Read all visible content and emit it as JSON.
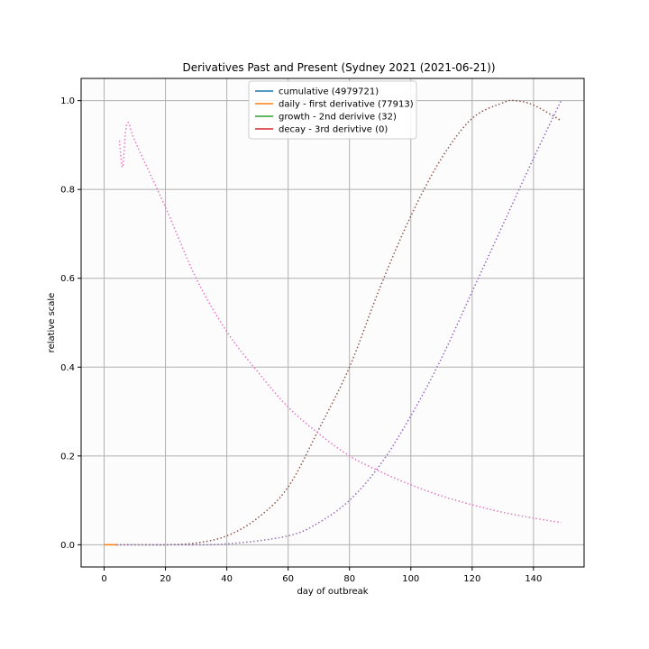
{
  "chart_data": {
    "type": "line",
    "title": "Derivatives Past and Present (Sydney 2021 (2021-06-21))",
    "xlabel": "day of outbreak",
    "ylabel": "relative scale",
    "xlim": [
      -7.5,
      156.5
    ],
    "ylim": [
      -0.05,
      1.05
    ],
    "xticks": [
      0,
      20,
      40,
      60,
      80,
      100,
      120,
      140
    ],
    "yticks": [
      0.0,
      0.2,
      0.4,
      0.6,
      0.8,
      1.0
    ],
    "xtick_labels": [
      "0",
      "20",
      "40",
      "60",
      "80",
      "100",
      "120",
      "140"
    ],
    "ytick_labels": [
      "0.0",
      "0.2",
      "0.4",
      "0.6",
      "0.8",
      "1.0"
    ],
    "grid": true,
    "legend_position": "upper center",
    "legend": [
      {
        "label": "cumulative (4979721)",
        "color": "#1f77b4"
      },
      {
        "label": "daily - first derivative (77913)",
        "color": "#ff7f0e"
      },
      {
        "label": "growth - 2nd derivive (32)",
        "color": "#2ca02c"
      },
      {
        "label": "decay - 3rd derivtive (0)",
        "color": "#d62728"
      }
    ],
    "series": [
      {
        "style": "solid",
        "color": "#ff7f0e",
        "x": [
          0,
          1,
          2,
          3,
          4
        ],
        "y": [
          0.0,
          0.0,
          0.0,
          0.0,
          0.0
        ]
      },
      {
        "style": "dotted",
        "color": "#8c564b",
        "x": [
          4,
          10,
          20,
          30,
          40,
          50,
          60,
          70,
          80,
          90,
          100,
          110,
          120,
          130,
          134,
          140,
          149
        ],
        "y": [
          0.0,
          0.0,
          0.0,
          0.004,
          0.02,
          0.06,
          0.13,
          0.26,
          0.4,
          0.58,
          0.74,
          0.87,
          0.96,
          0.995,
          1.0,
          0.99,
          0.955
        ]
      },
      {
        "style": "dotted",
        "color": "#9467bd",
        "x": [
          4,
          20,
          40,
          60,
          70,
          80,
          90,
          100,
          110,
          120,
          130,
          140,
          149
        ],
        "y": [
          0.0,
          0.0,
          0.002,
          0.02,
          0.05,
          0.1,
          0.18,
          0.29,
          0.42,
          0.57,
          0.72,
          0.87,
          1.0
        ],
        "smooth": true
      },
      {
        "style": "dotted",
        "color": "#e377c2",
        "x": [
          5,
          6,
          7,
          8,
          10,
          20,
          30,
          40,
          50,
          60,
          70,
          80,
          90,
          100,
          110,
          120,
          130,
          140,
          149
        ],
        "y": [
          0.91,
          0.85,
          0.93,
          0.95,
          0.91,
          0.76,
          0.6,
          0.48,
          0.39,
          0.31,
          0.25,
          0.2,
          0.165,
          0.135,
          0.11,
          0.09,
          0.073,
          0.06,
          0.05
        ]
      }
    ]
  },
  "colors": {
    "background": "#fdfcfd",
    "grid": "#b0b0b0",
    "axis": "#000000"
  }
}
